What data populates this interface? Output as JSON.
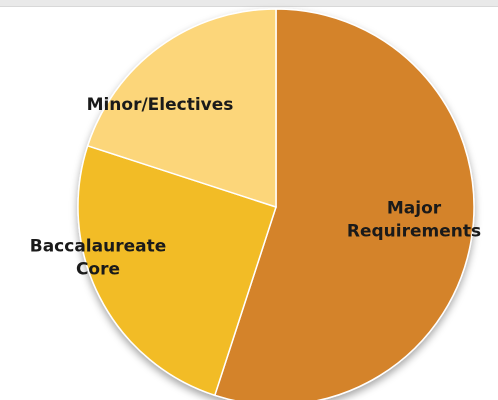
{
  "chart_data": {
    "type": "pie",
    "title": "",
    "slices": [
      {
        "label": "Major Requirements",
        "lines": [
          "Major",
          "Requirements"
        ],
        "value": 0.55,
        "color": "#D4832A"
      },
      {
        "label": "Baccalaureate Core",
        "lines": [
          "Baccalaureate",
          "Core"
        ],
        "value": 0.25,
        "color": "#F2BC26"
      },
      {
        "label": "Minor/Electives",
        "lines": [
          "Minor/Electives"
        ],
        "value": 0.2,
        "color": "#FCD67A"
      }
    ],
    "start": "12 o'clock",
    "direction": "clockwise",
    "legend": "none",
    "labels": "on-slice"
  }
}
